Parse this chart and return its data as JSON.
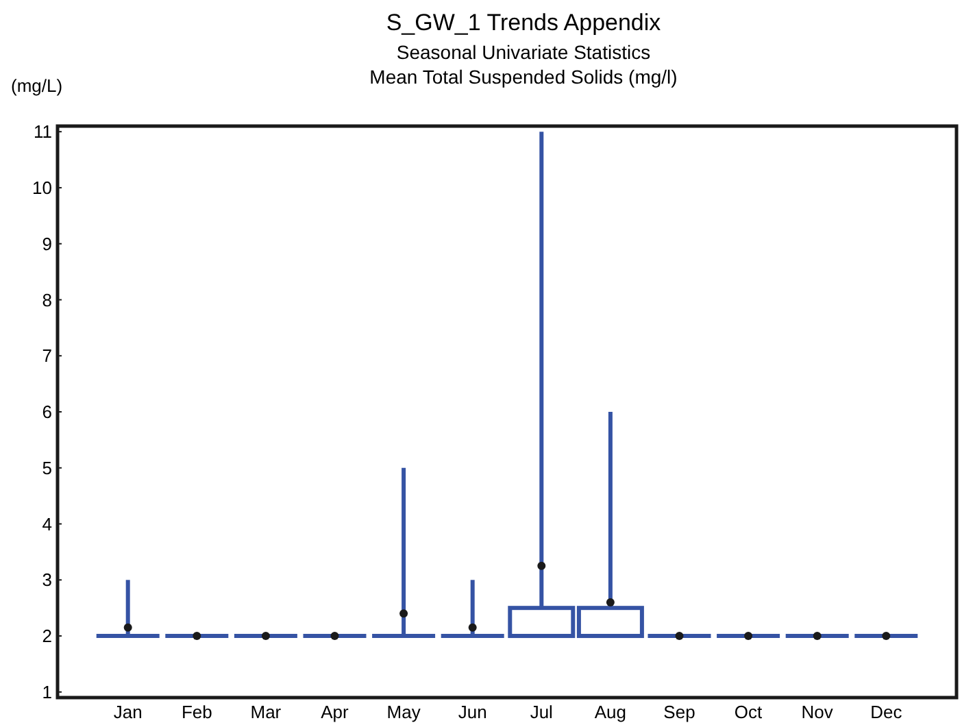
{
  "chart_data": {
    "type": "box",
    "title": "S_GW_1 Trends Appendix",
    "subtitle": "Seasonal Univariate Statistics\nMean Total Suspended Solids (mg/l)",
    "ylabel": "(mg/L)",
    "categories": [
      "Jan",
      "Feb",
      "Mar",
      "Apr",
      "May",
      "Jun",
      "Jul",
      "Aug",
      "Sep",
      "Oct",
      "Nov",
      "Dec"
    ],
    "color": "#3553a4",
    "boxes": [
      {
        "low": 2,
        "q1": 2,
        "median": 2,
        "q3": 2,
        "high": 3,
        "mean": 2.15
      },
      {
        "low": 2,
        "q1": 2,
        "median": 2,
        "q3": 2,
        "high": 2,
        "mean": 2
      },
      {
        "low": 2,
        "q1": 2,
        "median": 2,
        "q3": 2,
        "high": 2,
        "mean": 2
      },
      {
        "low": 2,
        "q1": 2,
        "median": 2,
        "q3": 2,
        "high": 2,
        "mean": 2
      },
      {
        "low": 2,
        "q1": 2,
        "median": 2,
        "q3": 2,
        "high": 5,
        "mean": 2.4
      },
      {
        "low": 2,
        "q1": 2,
        "median": 2,
        "q3": 2,
        "high": 3,
        "mean": 2.15
      },
      {
        "low": 2,
        "q1": 2,
        "median": 2,
        "q3": 2.5,
        "high": 11,
        "mean": 3.25
      },
      {
        "low": 2,
        "q1": 2,
        "median": 2,
        "q3": 2.5,
        "high": 6,
        "mean": 2.6
      },
      {
        "low": 2,
        "q1": 2,
        "median": 2,
        "q3": 2,
        "high": 2,
        "mean": 2
      },
      {
        "low": 2,
        "q1": 2,
        "median": 2,
        "q3": 2,
        "high": 2,
        "mean": 2
      },
      {
        "low": 2,
        "q1": 2,
        "median": 2,
        "q3": 2,
        "high": 2,
        "mean": 2
      },
      {
        "low": 2,
        "q1": 2,
        "median": 2,
        "q3": 2,
        "high": 2,
        "mean": 2
      }
    ],
    "ylim": [
      0.9,
      11.1
    ],
    "yticks": [
      1,
      2,
      3,
      4,
      5,
      6,
      7,
      8,
      9,
      10,
      11
    ],
    "grid": false
  }
}
